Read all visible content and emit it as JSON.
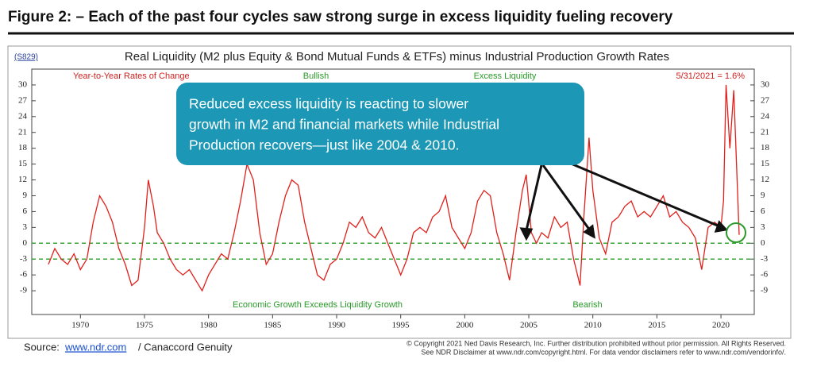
{
  "figure_title": "Figure 2: – Each of the past four cycles saw strong surge in excess liquidity fueling recovery",
  "chart_data": {
    "type": "line",
    "code": "(S829)",
    "title": "Real Liquidity (M2 plus Equity & Bond Mutual Funds & ETFs) minus Industrial Production Growth Rates",
    "y_label": "Year-to-Year Rates of Change",
    "annotations": {
      "top_left": "Bullish",
      "top_right": "Excess Liquidity",
      "bottom_left": "Economic Growth Exceeds Liquidity Growth",
      "bottom_right": "Bearish",
      "latest": "5/31/2021 = 1.6%"
    },
    "callout": [
      "Reduced excess liquidity is reacting to slower",
      "growth in M2 and financial markets while Industrial",
      "Production recovers—just like 2004 & 2010."
    ],
    "xlim": [
      1966.2,
      2022.6
    ],
    "xticks": [
      1970,
      1975,
      1980,
      1985,
      1990,
      1995,
      2000,
      2005,
      2010,
      2015,
      2020
    ],
    "ylim": [
      -13.5,
      33
    ],
    "yticks": [
      30,
      27,
      24,
      21,
      18,
      15,
      12,
      9,
      6,
      3,
      0,
      -3,
      -6,
      -9
    ],
    "reference_lines": [
      0,
      -3
    ],
    "reference_color": "#3aa63a",
    "series": [
      {
        "name": "Real Liquidity minus Industrial Production",
        "color": "#e0201b",
        "x": [
          1967.5,
          1968,
          1968.5,
          1969,
          1969.5,
          1970,
          1970.5,
          1971,
          1971.5,
          1972,
          1972.5,
          1973,
          1973.5,
          1974,
          1974.5,
          1975,
          1975.3,
          1975.7,
          1976,
          1976.5,
          1977,
          1977.5,
          1978,
          1978.5,
          1979,
          1979.5,
          1980,
          1980.5,
          1981,
          1981.5,
          1982,
          1982.5,
          1983,
          1983.5,
          1984,
          1984.5,
          1985,
          1985.5,
          1986,
          1986.5,
          1987,
          1987.5,
          1988,
          1988.5,
          1989,
          1989.5,
          1990,
          1990.5,
          1991,
          1991.5,
          1992,
          1992.5,
          1993,
          1993.5,
          1994,
          1994.5,
          1995,
          1995.5,
          1996,
          1996.5,
          1997,
          1997.5,
          1998,
          1998.5,
          1999,
          1999.5,
          2000,
          2000.5,
          2001,
          2001.5,
          2002,
          2002.5,
          2003,
          2003.5,
          2004,
          2004.5,
          2004.8,
          2005.2,
          2005.6,
          2006,
          2006.5,
          2007,
          2007.5,
          2008,
          2008.5,
          2009,
          2009.3,
          2009.7,
          2010,
          2010.5,
          2011,
          2011.5,
          2012,
          2012.5,
          2013,
          2013.5,
          2014,
          2014.5,
          2015,
          2015.5,
          2016,
          2016.5,
          2017,
          2017.5,
          2018,
          2018.5,
          2019,
          2019.5,
          2020,
          2020.2,
          2020.4,
          2020.7,
          2021,
          2021.42
        ],
        "values": [
          -4,
          -1,
          -3,
          -4,
          -2,
          -5,
          -3,
          4,
          9,
          7,
          4,
          -1,
          -4,
          -8,
          -7,
          3,
          12,
          7,
          2,
          0,
          -3,
          -5,
          -6,
          -5,
          -7,
          -9,
          -6,
          -4,
          -2,
          -3,
          2,
          8,
          15,
          12,
          2,
          -4,
          -2,
          4,
          9,
          12,
          11,
          4,
          -1,
          -6,
          -7,
          -4,
          -3,
          0,
          4,
          3,
          5,
          2,
          1,
          3,
          0,
          -3,
          -6,
          -3,
          2,
          3,
          2,
          5,
          6,
          9,
          3,
          1,
          -1,
          2,
          8,
          10,
          9,
          2,
          -2,
          -7,
          2,
          10,
          13,
          2,
          0,
          2,
          1,
          5,
          3,
          4,
          -3,
          -8,
          5,
          20,
          10,
          1,
          -2,
          4,
          5,
          7,
          8,
          5,
          6,
          5,
          7,
          9,
          5,
          6,
          4,
          3,
          1,
          -5,
          3,
          4,
          3,
          8,
          30,
          18,
          29,
          1.6
        ]
      }
    ]
  },
  "source": {
    "prefix": "Source:",
    "link": "www.ndr.com",
    "suffix": "/ Canaccord Genuity"
  },
  "copyright": [
    "© Copyright 2021 Ned Davis Research, Inc. Further distribution prohibited without prior permission. All Rights Reserved.",
    "See NDR Disclaimer at www.ndr.com/copyright.html. For data vendor disclaimers refer to www.ndr.com/vendorinfo/."
  ]
}
